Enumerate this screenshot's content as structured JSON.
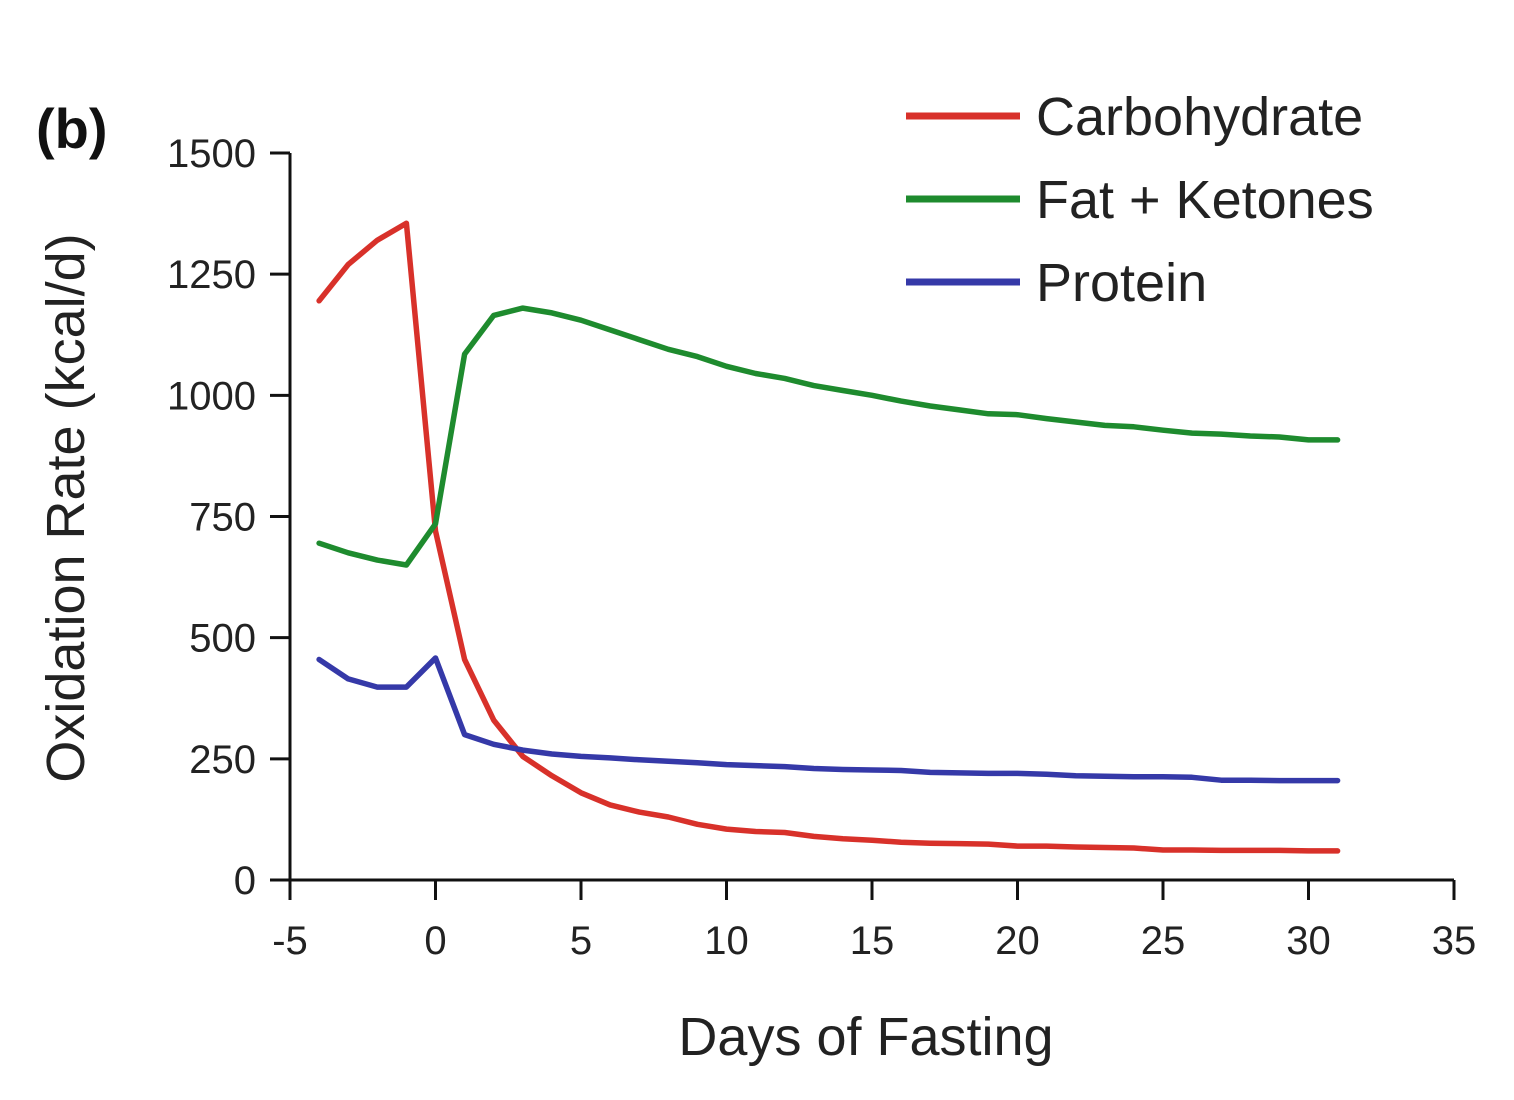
{
  "panel_label": "(b)",
  "colors": {
    "axis": "#111111",
    "text": "#222222"
  },
  "chart_data": {
    "type": "line",
    "xlabel": "Days of Fasting",
    "ylabel": "Oxidation Rate (kcal/d)",
    "xlim": [
      -5,
      35
    ],
    "ylim": [
      0,
      1500
    ],
    "xticks": [
      -5,
      0,
      5,
      10,
      15,
      20,
      25,
      30,
      35
    ],
    "yticks": [
      0,
      250,
      500,
      750,
      1000,
      1250,
      1500
    ],
    "grid": false,
    "legend": "top-right",
    "x": [
      -4,
      -3,
      -2,
      -1,
      0,
      1,
      2,
      3,
      4,
      5,
      6,
      7,
      8,
      9,
      10,
      11,
      12,
      13,
      14,
      15,
      16,
      17,
      18,
      19,
      20,
      21,
      22,
      23,
      24,
      25,
      26,
      27,
      28,
      29,
      30,
      31
    ],
    "series": [
      {
        "name": "Carbohydrate",
        "color": "#d8312a",
        "values": [
          1195,
          1270,
          1320,
          1355,
          720,
          455,
          330,
          255,
          215,
          180,
          155,
          140,
          130,
          115,
          105,
          100,
          98,
          90,
          85,
          82,
          78,
          76,
          75,
          74,
          70,
          70,
          68,
          67,
          66,
          62,
          62,
          61,
          61,
          61,
          60,
          60
        ]
      },
      {
        "name": "Fat + Ketones",
        "color": "#1e8b2e",
        "values": [
          695,
          675,
          660,
          650,
          735,
          1085,
          1165,
          1180,
          1170,
          1155,
          1135,
          1115,
          1095,
          1080,
          1060,
          1045,
          1035,
          1020,
          1010,
          1000,
          988,
          978,
          970,
          962,
          960,
          952,
          945,
          938,
          935,
          928,
          922,
          920,
          916,
          914,
          908,
          908
        ]
      },
      {
        "name": "Protein",
        "color": "#3539a8",
        "values": [
          455,
          415,
          398,
          398,
          458,
          300,
          280,
          268,
          260,
          255,
          252,
          248,
          245,
          242,
          238,
          236,
          234,
          230,
          228,
          227,
          226,
          222,
          221,
          220,
          220,
          218,
          215,
          214,
          213,
          213,
          212,
          206,
          206,
          205,
          205,
          205
        ]
      }
    ]
  }
}
